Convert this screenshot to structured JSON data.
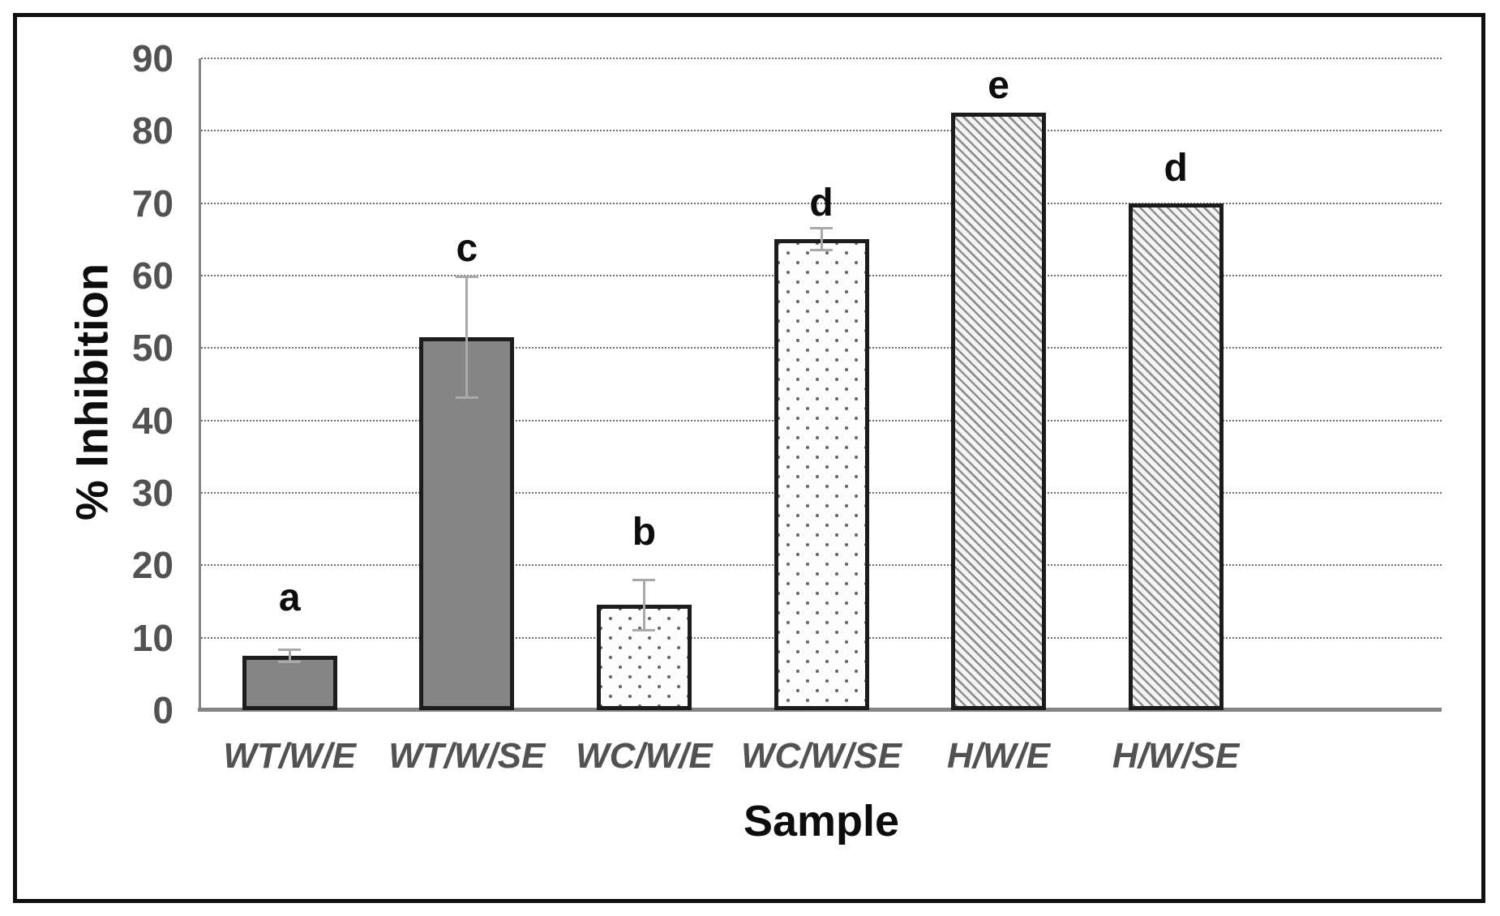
{
  "chart_data": {
    "type": "bar",
    "title": "",
    "xlabel": "Sample",
    "ylabel": "% Inhibition",
    "ylim": [
      0,
      90
    ],
    "ytick_step": 10,
    "yticks": [
      0,
      10,
      20,
      30,
      40,
      50,
      60,
      70,
      80,
      90
    ],
    "grid": "horizontal dotted gridlines at every 10 units",
    "legend": "none",
    "categories": [
      "WT/W/E",
      "WT/W/SE",
      "WC/W/E",
      "WC/W/SE",
      "H/W/E",
      "H/W/SE"
    ],
    "series": [
      {
        "name": "% Inhibition",
        "values": [
          7.5,
          51.5,
          14.5,
          65,
          82.5,
          70
        ],
        "error_bars": [
          0.8,
          8.3,
          3.5,
          1.5,
          0,
          0
        ],
        "patterns": [
          "solid-gray",
          "solid-gray",
          "dotted-stipple",
          "dotted-stipple",
          "diagonal-hatch",
          "diagonal-hatch"
        ]
      }
    ],
    "annotations": [
      {
        "category": "WT/W/E",
        "label": "a",
        "y": 15.5
      },
      {
        "category": "WT/W/SE",
        "label": "c",
        "y": 63.7
      },
      {
        "category": "WC/W/E",
        "label": "b",
        "y": 24.5
      },
      {
        "category": "WC/W/SE",
        "label": "d",
        "y": 70.0
      },
      {
        "category": "H/W/E",
        "label": "e",
        "y": 86.2
      },
      {
        "category": "H/W/SE",
        "label": "d",
        "y": 74.8
      }
    ],
    "colors": {
      "background": "#ffffff",
      "frame_border": "#111111",
      "bar_solid_fill": "#858585",
      "bar_border": "#1c1c1c",
      "hatch_line": "#8f8f8f",
      "stipple_dot": "#636363",
      "axis_line": "#848484",
      "gridline": "#6e6e6e",
      "error_bar": "#a9a9a9",
      "tick_label": "#525252",
      "axis_title": "#0d0d0d"
    }
  }
}
